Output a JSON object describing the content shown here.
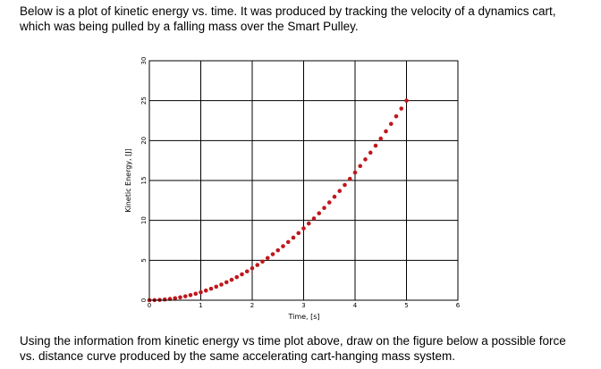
{
  "intro": {
    "line1": "Below is a plot of kinetic energy vs. time. It was produced by tracking the velocity of a dynamics cart,",
    "line2": "which was being pulled by a falling mass over the Smart Pulley."
  },
  "outro": {
    "line1": "Using the information from kinetic energy vs time plot above, draw on the figure below a possible force",
    "line2": "vs. distance curve produced by the same accelerating cart-hanging mass system."
  },
  "chart_data": {
    "type": "scatter",
    "xlabel": "Time, [s]",
    "ylabel": "Kinetic Energy, [J]",
    "xlim": [
      0,
      6
    ],
    "ylim": [
      0,
      30
    ],
    "xticks": [
      "0",
      "1",
      "2",
      "3",
      "4",
      "5",
      "6"
    ],
    "yticks": [
      "0",
      "5",
      "10",
      "15",
      "20",
      "25",
      "30"
    ],
    "grid": true,
    "marker_color": "#c0171d",
    "grid_color": "#000000",
    "series": [
      {
        "x": [
          0.0,
          0.1,
          0.2,
          0.3,
          0.4,
          0.5,
          0.6,
          0.7,
          0.8,
          0.9,
          1.0,
          1.1,
          1.2,
          1.3,
          1.4,
          1.5,
          1.6,
          1.7,
          1.8,
          1.9,
          2.0,
          2.1,
          2.2,
          2.3,
          2.4,
          2.5,
          2.6,
          2.7,
          2.8,
          2.9,
          3.0,
          3.1,
          3.2,
          3.3,
          3.4,
          3.5,
          3.6,
          3.7,
          3.8,
          3.9,
          4.0,
          4.1,
          4.2,
          4.3,
          4.4,
          4.5,
          4.6,
          4.7,
          4.8,
          4.9,
          5.0
        ],
        "y": [
          0.0,
          0.01,
          0.04,
          0.09,
          0.16,
          0.25,
          0.36,
          0.49,
          0.64,
          0.81,
          1.0,
          1.21,
          1.44,
          1.69,
          1.96,
          2.25,
          2.56,
          2.89,
          3.24,
          3.61,
          4.0,
          4.41,
          4.84,
          5.29,
          5.76,
          6.25,
          6.76,
          7.29,
          7.84,
          8.41,
          9.0,
          9.61,
          10.24,
          10.89,
          11.56,
          12.25,
          12.96,
          13.69,
          14.44,
          15.21,
          16.0,
          16.81,
          17.64,
          18.49,
          19.36,
          20.25,
          21.16,
          22.09,
          23.04,
          24.01,
          25.0
        ]
      }
    ]
  }
}
